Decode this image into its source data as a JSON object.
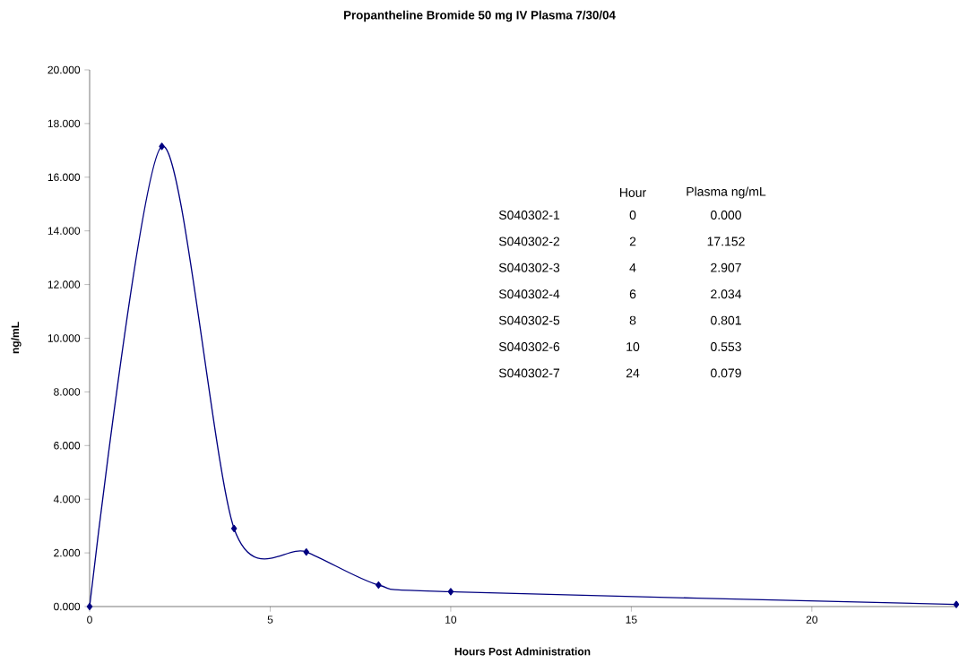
{
  "chart_data": {
    "type": "line",
    "title": "Propantheline Bromide 50 mg IV Plasma  7/30/04",
    "xlabel": "Hours Post Administration",
    "ylabel": "ng/mL",
    "x": [
      0,
      2,
      4,
      6,
      8,
      10,
      24
    ],
    "series": [
      {
        "color": "#000080",
        "values": [
          0.0,
          17.152,
          2.907,
          2.034,
          0.801,
          0.553,
          0.079
        ]
      }
    ],
    "annotations": [
      "Hour",
      "Plasma ng/mL",
      "S040302-1",
      "0",
      "0.000",
      "S040302-2",
      "2",
      "17.152",
      "S040302-3",
      "4",
      "2.907",
      "S040302-4",
      "6",
      "2.034",
      "S040302-5",
      "8",
      "0.801",
      "S040302-6",
      "10",
      "0.553",
      "S040302-7",
      "24",
      "0.079"
    ],
    "xlim": [
      0,
      24
    ],
    "xticks": [
      0,
      5,
      10,
      15,
      20
    ],
    "ylim": [
      0,
      20
    ],
    "yticks": [
      {
        "value": 0,
        "label": "0.000"
      },
      {
        "value": 2,
        "label": "2.000"
      },
      {
        "value": 4,
        "label": "4.000"
      },
      {
        "value": 6,
        "label": "6.000"
      },
      {
        "value": 8,
        "label": "8.000"
      },
      {
        "value": 10,
        "label": "10.000"
      },
      {
        "value": 12,
        "label": "12.000"
      },
      {
        "value": 14,
        "label": "14.000"
      },
      {
        "value": 16,
        "label": "16.000"
      },
      {
        "value": 18,
        "label": "18.000"
      },
      {
        "value": 20,
        "label": "20.000"
      }
    ],
    "marker": "diamond",
    "line_style": "solid",
    "grid": false
  }
}
